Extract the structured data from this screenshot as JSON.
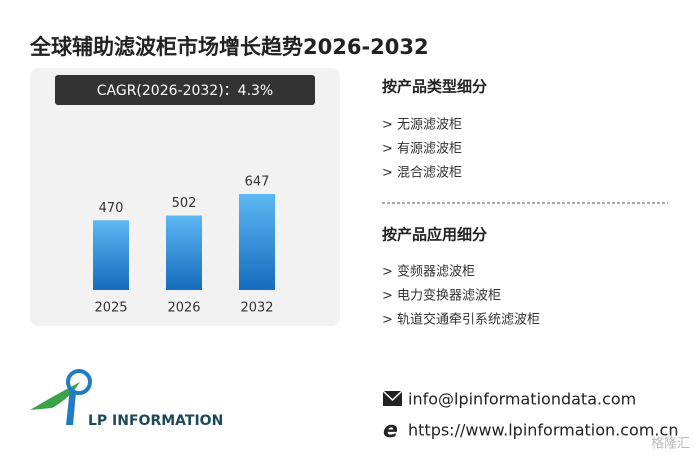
{
  "chart_data": {
    "type": "bar",
    "title": "全球辅助滤波柜市场增长趋势2026-2032",
    "cagr": "CAGR(2026-2032)：4.3%",
    "categories": [
      "2025",
      "2026",
      "2032"
    ],
    "values": [
      470,
      502,
      647
    ]
  },
  "segments": [
    {
      "title": "按产品类型细分",
      "items": [
        "> 无源滤波柜",
        "> 有源滤波柜",
        "> 混合滤波柜"
      ]
    },
    {
      "title": "按产品应用细分",
      "items": [
        "> 变频器滤波柜",
        "> 电力变换器滤波柜",
        "> 轨道交通牵引系统滤波柜"
      ]
    }
  ],
  "logo": "LP INFORMATION",
  "contact": {
    "email": "info@lpinformationdata.com",
    "website": "https://www.lpinformation.com.cn"
  },
  "watermark": "格隆汇"
}
